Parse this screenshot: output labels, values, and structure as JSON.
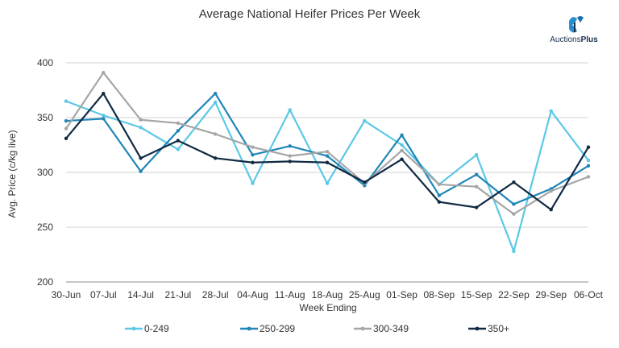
{
  "chart_data": {
    "type": "line",
    "title": "Average National Heifer Prices Per Week",
    "xlabel": "Week Ending",
    "ylabel": "Avg. Price (c/kg live)",
    "categories": [
      "30-Jun",
      "07-Jul",
      "14-Jul",
      "21-Jul",
      "28-Jul",
      "04-Aug",
      "11-Aug",
      "18-Aug",
      "25-Aug",
      "01-Sep",
      "08-Sep",
      "15-Sep",
      "22-Sep",
      "29-Sep",
      "06-Oct"
    ],
    "ylim": [
      200,
      400
    ],
    "yticks": [
      200,
      250,
      300,
      350,
      400
    ],
    "grid": true,
    "legend_position": "bottom",
    "series": [
      {
        "name": "0-249",
        "color": "#5bc8e6",
        "values": [
          365,
          352,
          341,
          321,
          364,
          290,
          357,
          290,
          347,
          325,
          289,
          316,
          228,
          356,
          311
        ]
      },
      {
        "name": "250-299",
        "color": "#1f86b8",
        "values": [
          347,
          349,
          301,
          338,
          372,
          316,
          324,
          315,
          288,
          334,
          279,
          298,
          271,
          285,
          306
        ]
      },
      {
        "name": "300-349",
        "color": "#a6a6a6",
        "values": [
          340,
          391,
          348,
          345,
          335,
          323,
          315,
          319,
          290,
          320,
          289,
          287,
          262,
          283,
          296
        ]
      },
      {
        "name": "350+",
        "color": "#102a43",
        "values": [
          331,
          372,
          313,
          329,
          313,
          309,
          310,
          309,
          291,
          312,
          273,
          268,
          291,
          266,
          323
        ]
      }
    ]
  },
  "logo": {
    "text_regular": "Auctions",
    "text_bold": "Plus",
    "icon": "auctionsplus-logo-icon"
  }
}
